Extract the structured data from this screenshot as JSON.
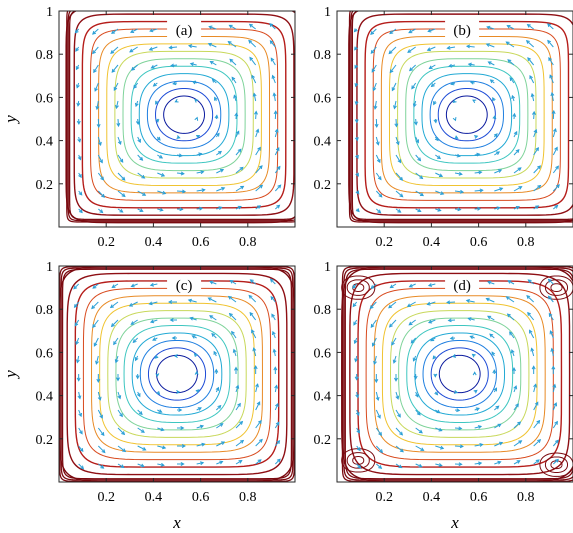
{
  "chart_data": [
    {
      "type": "contour",
      "panel": "(a)",
      "xlabel": "",
      "ylabel": "y",
      "xlim": [
        0,
        1
      ],
      "ylim": [
        0,
        1
      ],
      "xticks": [
        "0.2",
        "0.4",
        "0.6",
        "0.8"
      ],
      "yticks": [
        "0.2",
        "0.4",
        "0.6",
        "0.8",
        "1"
      ],
      "vortex_center": [
        0.53,
        0.52
      ],
      "corner_vortices": false,
      "squareness": 0.55,
      "level_colors": [
        "#0a1a9e",
        "#1d4bd6",
        "#1f7fe0",
        "#22a9d4",
        "#3ec6c0",
        "#7fd39a",
        "#c8d85a",
        "#f0c330",
        "#e88a25",
        "#d84a1e",
        "#b51d1a",
        "#8e0f14",
        "#7a0a10"
      ]
    },
    {
      "type": "contour",
      "panel": "(b)",
      "xlabel": "",
      "ylabel": "",
      "xlim": [
        0,
        1
      ],
      "ylim": [
        0,
        1
      ],
      "xticks": [
        "0.2",
        "0.4",
        "0.6",
        "0.8"
      ],
      "yticks": [
        "0.2",
        "0.4",
        "0.6",
        "0.8",
        "1"
      ],
      "vortex_center": [
        0.55,
        0.52
      ],
      "corner_vortices": false,
      "squareness": 0.6,
      "level_colors": [
        "#0a1a9e",
        "#1d4bd6",
        "#1f7fe0",
        "#22a9d4",
        "#3ec6c0",
        "#7fd39a",
        "#c8d85a",
        "#f0c330",
        "#e88a25",
        "#d84a1e",
        "#b51d1a",
        "#8e0f14",
        "#7a0a10"
      ]
    },
    {
      "type": "contour",
      "panel": "(c)",
      "xlabel": "x",
      "ylabel": "y",
      "xlim": [
        0,
        1
      ],
      "ylim": [
        0,
        1
      ],
      "xticks": [
        "0.2",
        "0.4",
        "0.6",
        "0.8"
      ],
      "yticks": [
        "0.2",
        "0.4",
        "0.6",
        "0.8",
        "1"
      ],
      "vortex_center": [
        0.5,
        0.5
      ],
      "corner_vortices": false,
      "squareness": 0.35,
      "level_colors": [
        "#0a1a9e",
        "#1d4bd6",
        "#1f7fe0",
        "#22a9d4",
        "#3ec6c0",
        "#7fd39a",
        "#c8d85a",
        "#f0c330",
        "#e88a25",
        "#d84a1e",
        "#b51d1a",
        "#8e0f14",
        "#7a0a10"
      ]
    },
    {
      "type": "contour",
      "panel": "(d)",
      "xlabel": "x",
      "ylabel": "",
      "xlim": [
        0,
        1
      ],
      "ylim": [
        0,
        1
      ],
      "xticks": [
        "0.2",
        "0.4",
        "0.6",
        "0.8"
      ],
      "yticks": [
        "0.2",
        "0.4",
        "0.6",
        "0.8",
        "1"
      ],
      "vortex_center": [
        0.52,
        0.5
      ],
      "corner_vortices": true,
      "squareness": 0.3,
      "level_colors": [
        "#0a1a9e",
        "#1d4bd6",
        "#1f7fe0",
        "#22a9d4",
        "#3ec6c0",
        "#7fd39a",
        "#c8d85a",
        "#f0c330",
        "#e88a25",
        "#d84a1e",
        "#b51d1a",
        "#8e0f14",
        "#7a0a10"
      ]
    }
  ]
}
